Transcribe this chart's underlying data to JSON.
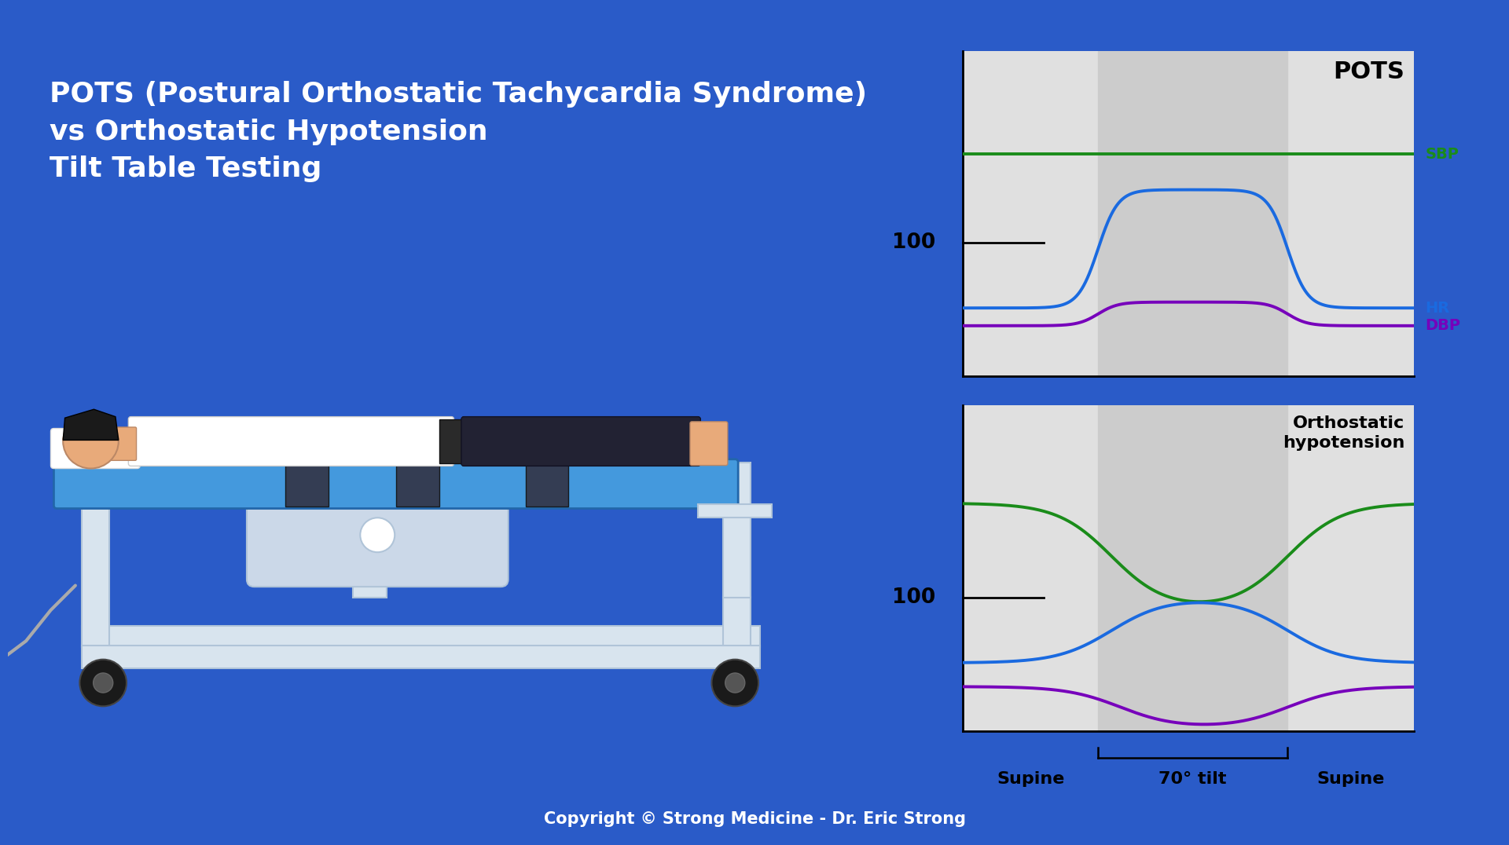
{
  "bg_blue": "#2A5BC8",
  "panel_bg": "#DADADA",
  "chart_bg": "#E0E0E0",
  "tilt_shade": "#CCCCCC",
  "title_text": "POTS (Postural Orthostatic Tachycardia Syndrome)\nvs Orthostatic Hypotension\nTilt Table Testing",
  "copyright_text": "Copyright © Strong Medicine - Dr. Eric Strong",
  "pots_label": "POTS",
  "ortho_label": "Orthostatic\nhypotension",
  "sbp_color": "#1A8C1A",
  "hr_color": "#1A6AE0",
  "dbp_color": "#7700BB",
  "sbp_label": "SBP",
  "hr_label": "HR",
  "dbp_label": "DBP",
  "label_100": "100",
  "supine_label": "Supine",
  "tilt_label": "70° tilt",
  "supine2_label": "Supine",
  "table_surface_color": "#4499DD",
  "frame_color": "#D8E4EE",
  "frame_edge": "#B0C4D8",
  "skin_color": "#E8AA7A",
  "hair_color": "#1A1A1A",
  "strap_color": "#333344",
  "wheel_color": "#1A1A1A"
}
